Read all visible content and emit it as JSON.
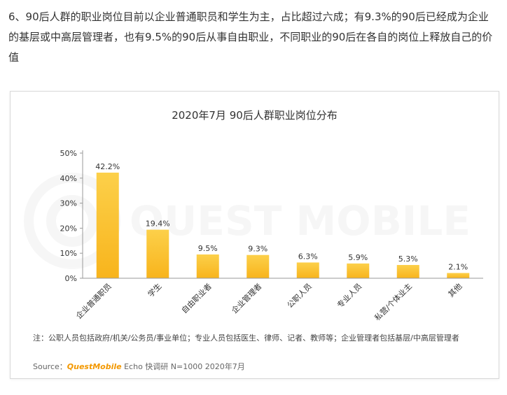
{
  "intro_text": "6、90后人群的职业岗位目前以企业普通职员和学生为主，占比超过六成；有9.3%的90后已经成为企业的基层或中高层管理者，也有9.5%的90后从事自由职业，不同职业的90后在各自的岗位上释放自己的价值",
  "watermark_text": "QUEST MOBILE",
  "note_text": "注：公职人员包括政府/机关/公务员/事业单位；专业人员包括医生、律师、记者、教师等；企业管理者包括基层/中高层管理者",
  "source": {
    "prefix": "Source：",
    "brand": "QuestMobile",
    "rest": " Echo 快调研 N=1000 2020年7月"
  },
  "colors": {
    "bar": "#f8b41c",
    "bar_light": "#fcd04a",
    "axis": "#999999",
    "brand": "#f39800"
  },
  "chart_data": {
    "type": "bar",
    "title": "2020年7月 90后人群职业岗位分布",
    "categories": [
      "企业普通职员",
      "学生",
      "自由职业者",
      "企业管理者",
      "公职人员",
      "专业人员",
      "私营/个体业主",
      "其他"
    ],
    "values": [
      42.2,
      19.4,
      9.5,
      9.3,
      6.3,
      5.9,
      5.3,
      2.1
    ],
    "value_labels": [
      "42.2%",
      "19.4%",
      "9.5%",
      "9.3%",
      "6.3%",
      "5.9%",
      "5.3%",
      "2.1%"
    ],
    "yticks": [
      "0%",
      "10%",
      "20%",
      "30%",
      "40%",
      "50%"
    ],
    "ylim": [
      0,
      50
    ],
    "xlabel": "",
    "ylabel": ""
  }
}
